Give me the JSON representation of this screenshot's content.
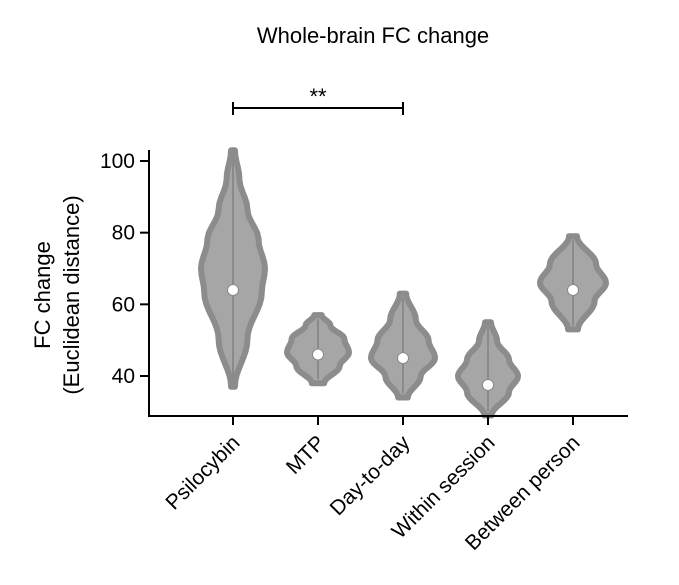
{
  "chart_data": {
    "type": "violin",
    "title": "Whole-brain FC change",
    "ylabel_line1": "FC change",
    "ylabel_line2": "(Euclidean distance)",
    "xlabel": "",
    "ylim": [
      28,
      104
    ],
    "yticks": [
      40,
      60,
      80,
      100
    ],
    "categories": [
      "Psilocybin",
      "MTP",
      "Day-to-day",
      "Within session",
      "Between person"
    ],
    "series": [
      {
        "category": "Psilocybin",
        "median": 64,
        "min": 37,
        "max": 103
      },
      {
        "category": "MTP",
        "median": 46,
        "min": 38,
        "max": 57
      },
      {
        "category": "Day-to-day",
        "median": 45,
        "min": 34,
        "max": 63
      },
      {
        "category": "Within session",
        "median": 37.5,
        "min": 29,
        "max": 55
      },
      {
        "category": "Between person",
        "median": 64,
        "min": 53,
        "max": 79
      }
    ],
    "significance": {
      "from": "Psilocybin",
      "to": "Day-to-day",
      "label": "**"
    },
    "colors": {
      "violin": "#a6a6a6",
      "violin_edge": "#8c8c8c",
      "median_fill": "#ffffff",
      "axis": "#000000"
    }
  }
}
